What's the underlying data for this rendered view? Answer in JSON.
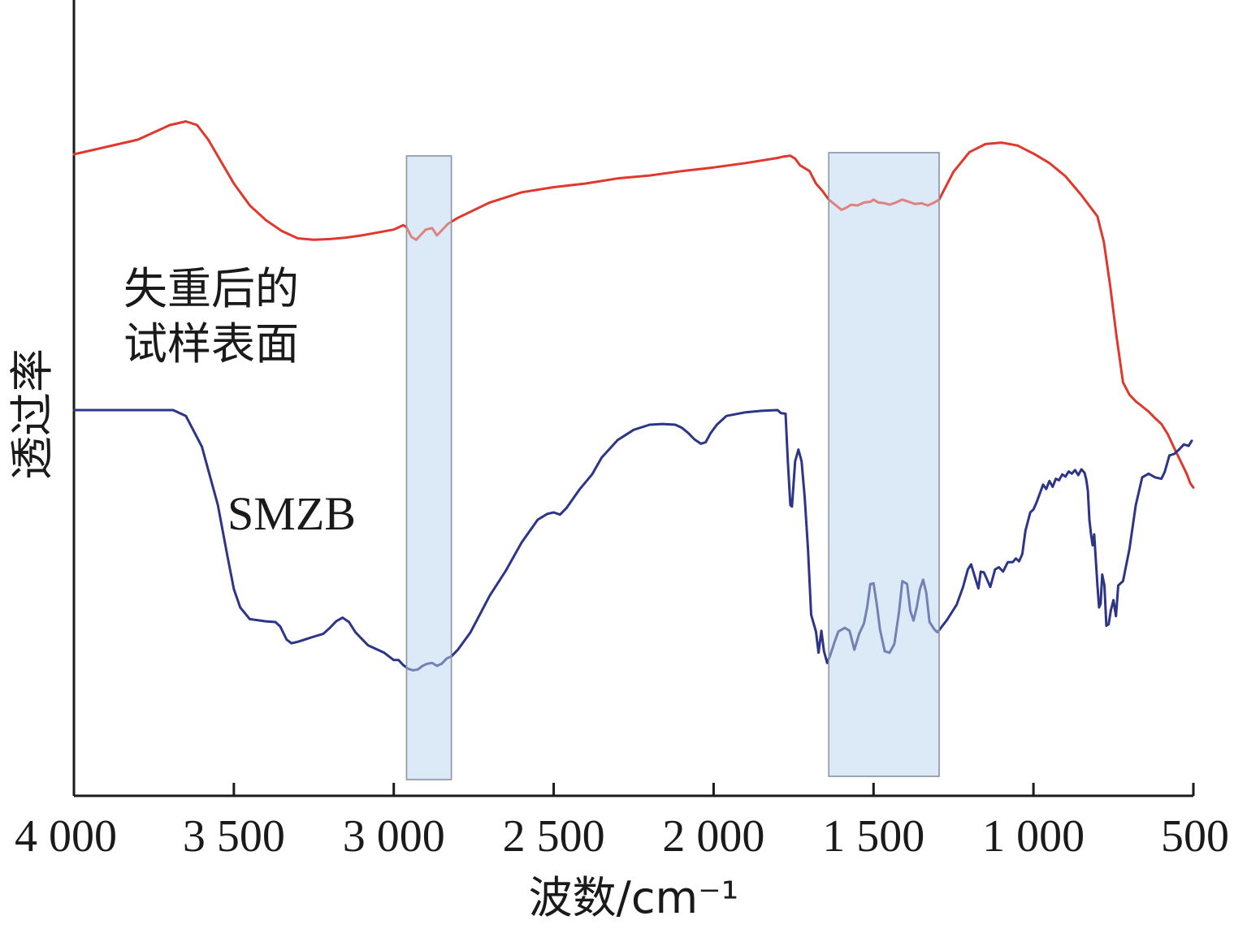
{
  "chart_data": {
    "type": "line",
    "xlabel": "波数/cm⁻¹",
    "ylabel": "透过率",
    "xlim": [
      4000,
      500
    ],
    "x_reversed": true,
    "xticks": [
      {
        "value": 4000,
        "label": "4 000"
      },
      {
        "value": 3500,
        "label": "3 500"
      },
      {
        "value": 3000,
        "label": "3 000"
      },
      {
        "value": 2500,
        "label": "2 500"
      },
      {
        "value": 2000,
        "label": "2 000"
      },
      {
        "value": 1500,
        "label": "1 500"
      },
      {
        "value": 1000,
        "label": "1 000"
      },
      {
        "value": 500,
        "label": "500"
      }
    ],
    "y_ticks_shown": false,
    "ylim": [
      0,
      100
    ],
    "highlight_bands": [
      {
        "from": 2960,
        "to": 2820,
        "color": "#dbeaf6"
      },
      {
        "from": 1640,
        "to": 1295,
        "color": "#dbeaf6"
      }
    ],
    "series": [
      {
        "name": "失重后的试样表面",
        "label_lines": [
          "失重后的",
          "试样表面"
        ],
        "color": "#e0382c",
        "points": [
          [
            4000,
            80
          ],
          [
            3900,
            81
          ],
          [
            3800,
            82
          ],
          [
            3750,
            83
          ],
          [
            3700,
            84
          ],
          [
            3650,
            84.5
          ],
          [
            3615,
            84
          ],
          [
            3580,
            82
          ],
          [
            3540,
            79
          ],
          [
            3500,
            76
          ],
          [
            3450,
            73
          ],
          [
            3400,
            71
          ],
          [
            3350,
            69.5
          ],
          [
            3300,
            68.5
          ],
          [
            3250,
            68.3
          ],
          [
            3200,
            68.4
          ],
          [
            3150,
            68.6
          ],
          [
            3100,
            68.9
          ],
          [
            3050,
            69.3
          ],
          [
            3000,
            69.7
          ],
          [
            2970,
            70.3
          ],
          [
            2960,
            70
          ],
          [
            2945,
            68.7
          ],
          [
            2930,
            68.3
          ],
          [
            2915,
            69
          ],
          [
            2900,
            69.7
          ],
          [
            2880,
            69.9
          ],
          [
            2865,
            68.9
          ],
          [
            2850,
            69.6
          ],
          [
            2830,
            70.5
          ],
          [
            2800,
            71.3
          ],
          [
            2700,
            73.4
          ],
          [
            2600,
            74.8
          ],
          [
            2500,
            75.5
          ],
          [
            2400,
            76
          ],
          [
            2300,
            76.7
          ],
          [
            2200,
            77.1
          ],
          [
            2100,
            77.7
          ],
          [
            2000,
            78.2
          ],
          [
            1900,
            78.8
          ],
          [
            1800,
            79.5
          ],
          [
            1780,
            79.7
          ],
          [
            1760,
            79.8
          ],
          [
            1745,
            79.4
          ],
          [
            1730,
            78.5
          ],
          [
            1700,
            77.7
          ],
          [
            1680,
            76
          ],
          [
            1660,
            75
          ],
          [
            1640,
            73.8
          ],
          [
            1620,
            73.1
          ],
          [
            1600,
            72.4
          ],
          [
            1585,
            72.7
          ],
          [
            1570,
            73.1
          ],
          [
            1550,
            73
          ],
          [
            1530,
            73.4
          ],
          [
            1510,
            73.5
          ],
          [
            1500,
            73.8
          ],
          [
            1485,
            73.4
          ],
          [
            1465,
            73.3
          ],
          [
            1450,
            73.1
          ],
          [
            1430,
            73.4
          ],
          [
            1410,
            73.8
          ],
          [
            1390,
            73.5
          ],
          [
            1370,
            73.2
          ],
          [
            1350,
            73.3
          ],
          [
            1330,
            73
          ],
          [
            1310,
            73.4
          ],
          [
            1295,
            73.8
          ],
          [
            1250,
            77.6
          ],
          [
            1200,
            80.3
          ],
          [
            1150,
            81.4
          ],
          [
            1100,
            81.6
          ],
          [
            1050,
            81.2
          ],
          [
            1000,
            80.1
          ],
          [
            950,
            78.8
          ],
          [
            900,
            77
          ],
          [
            850,
            74.4
          ],
          [
            800,
            71.5
          ],
          [
            780,
            68
          ],
          [
            760,
            62
          ],
          [
            740,
            55
          ],
          [
            720,
            48.8
          ],
          [
            700,
            47.1
          ],
          [
            680,
            46.2
          ],
          [
            660,
            45.5
          ],
          [
            640,
            44.8
          ],
          [
            620,
            43.9
          ],
          [
            600,
            43.1
          ],
          [
            580,
            41.7
          ],
          [
            560,
            39.8
          ],
          [
            540,
            38
          ],
          [
            520,
            36.2
          ],
          [
            510,
            35
          ],
          [
            500,
            34.4
          ]
        ]
      },
      {
        "name": "SMZB",
        "label_lines": [
          "SMZB"
        ],
        "color": "#2c3587",
        "points": [
          [
            4000,
            45
          ],
          [
            3900,
            45
          ],
          [
            3800,
            45
          ],
          [
            3700,
            45
          ],
          [
            3690,
            45
          ],
          [
            3650,
            44.2
          ],
          [
            3600,
            40
          ],
          [
            3550,
            32
          ],
          [
            3520,
            25
          ],
          [
            3500,
            20.5
          ],
          [
            3480,
            18
          ],
          [
            3450,
            16.4
          ],
          [
            3400,
            16.1
          ],
          [
            3370,
            16
          ],
          [
            3355,
            15.4
          ],
          [
            3335,
            13.6
          ],
          [
            3320,
            13.1
          ],
          [
            3300,
            13.3
          ],
          [
            3250,
            14
          ],
          [
            3220,
            14.4
          ],
          [
            3200,
            15.2
          ],
          [
            3180,
            16.1
          ],
          [
            3160,
            16.6
          ],
          [
            3140,
            16
          ],
          [
            3120,
            14.6
          ],
          [
            3080,
            12.8
          ],
          [
            3030,
            11.8
          ],
          [
            3000,
            10.8
          ],
          [
            2985,
            10.8
          ],
          [
            2970,
            10.1
          ],
          [
            2955,
            9.6
          ],
          [
            2940,
            9.4
          ],
          [
            2925,
            9.5
          ],
          [
            2910,
            10
          ],
          [
            2895,
            10.3
          ],
          [
            2880,
            10.4
          ],
          [
            2865,
            10
          ],
          [
            2850,
            10.3
          ],
          [
            2835,
            11
          ],
          [
            2820,
            11.3
          ],
          [
            2800,
            12.2
          ],
          [
            2760,
            14.6
          ],
          [
            2700,
            19.6
          ],
          [
            2650,
            23
          ],
          [
            2600,
            26.9
          ],
          [
            2550,
            30
          ],
          [
            2520,
            30.8
          ],
          [
            2500,
            31
          ],
          [
            2480,
            30.7
          ],
          [
            2460,
            31.6
          ],
          [
            2420,
            34.1
          ],
          [
            2380,
            36.2
          ],
          [
            2350,
            38.5
          ],
          [
            2300,
            40.9
          ],
          [
            2250,
            42.3
          ],
          [
            2200,
            43
          ],
          [
            2160,
            43.1
          ],
          [
            2120,
            43
          ],
          [
            2100,
            42.6
          ],
          [
            2080,
            41.9
          ],
          [
            2060,
            41
          ],
          [
            2040,
            40.4
          ],
          [
            2025,
            40.6
          ],
          [
            2010,
            41.8
          ],
          [
            1990,
            43
          ],
          [
            1960,
            44.2
          ],
          [
            1900,
            44.7
          ],
          [
            1850,
            44.9
          ],
          [
            1800,
            45
          ],
          [
            1790,
            44.6
          ],
          [
            1775,
            44.5
          ],
          [
            1768,
            38
          ],
          [
            1760,
            32
          ],
          [
            1755,
            31.8
          ],
          [
            1745,
            38
          ],
          [
            1735,
            39.6
          ],
          [
            1725,
            38
          ],
          [
            1715,
            33
          ],
          [
            1705,
            26
          ],
          [
            1695,
            17
          ],
          [
            1680,
            14.7
          ],
          [
            1672,
            11.8
          ],
          [
            1663,
            14.8
          ],
          [
            1655,
            12
          ],
          [
            1645,
            10.4
          ],
          [
            1635,
            11.5
          ],
          [
            1620,
            13.5
          ],
          [
            1610,
            14.7
          ],
          [
            1590,
            15.2
          ],
          [
            1575,
            14.8
          ],
          [
            1560,
            12.2
          ],
          [
            1545,
            14.4
          ],
          [
            1530,
            15.8
          ],
          [
            1520,
            18
          ],
          [
            1510,
            21.2
          ],
          [
            1500,
            21.3
          ],
          [
            1490,
            18.5
          ],
          [
            1480,
            15
          ],
          [
            1465,
            12
          ],
          [
            1450,
            11.8
          ],
          [
            1435,
            13
          ],
          [
            1420,
            17.5
          ],
          [
            1410,
            21.6
          ],
          [
            1395,
            21.2
          ],
          [
            1385,
            17.5
          ],
          [
            1375,
            16.2
          ],
          [
            1365,
            18
          ],
          [
            1355,
            20.5
          ],
          [
            1345,
            21.8
          ],
          [
            1335,
            20
          ],
          [
            1325,
            16
          ],
          [
            1310,
            15
          ],
          [
            1300,
            14.6
          ],
          [
            1270,
            16.3
          ],
          [
            1240,
            18.4
          ],
          [
            1220,
            20.8
          ],
          [
            1205,
            23.2
          ],
          [
            1195,
            23.9
          ],
          [
            1180,
            21.7
          ],
          [
            1172,
            20.6
          ],
          [
            1165,
            22.9
          ],
          [
            1155,
            22.8
          ],
          [
            1145,
            21.8
          ],
          [
            1135,
            20.8
          ],
          [
            1120,
            23.2
          ],
          [
            1108,
            23.5
          ],
          [
            1095,
            22.9
          ],
          [
            1080,
            24.2
          ],
          [
            1065,
            24.2
          ],
          [
            1055,
            24.7
          ],
          [
            1045,
            24.3
          ],
          [
            1035,
            25.3
          ],
          [
            1025,
            28.5
          ],
          [
            1010,
            31
          ],
          [
            1000,
            31.4
          ],
          [
            990,
            32.4
          ],
          [
            970,
            34.8
          ],
          [
            960,
            34.2
          ],
          [
            950,
            35.3
          ],
          [
            940,
            34.5
          ],
          [
            930,
            35.6
          ],
          [
            920,
            35.4
          ],
          [
            910,
            36.2
          ],
          [
            900,
            35.9
          ],
          [
            890,
            36.6
          ],
          [
            880,
            36.3
          ],
          [
            870,
            36.8
          ],
          [
            860,
            36.1
          ],
          [
            850,
            36.9
          ],
          [
            840,
            36.4
          ],
          [
            835,
            35.5
          ],
          [
            830,
            34
          ],
          [
            825,
            30
          ],
          [
            820,
            28
          ],
          [
            815,
            26.5
          ],
          [
            810,
            28
          ],
          [
            800,
            21
          ],
          [
            795,
            18
          ],
          [
            790,
            18.5
          ],
          [
            785,
            22.5
          ],
          [
            778,
            21
          ],
          [
            772,
            15.5
          ],
          [
            765,
            15.7
          ],
          [
            758,
            17.6
          ],
          [
            750,
            19
          ],
          [
            742,
            16.8
          ],
          [
            735,
            21
          ],
          [
            720,
            21.6
          ],
          [
            700,
            26
          ],
          [
            680,
            32
          ],
          [
            660,
            35.8
          ],
          [
            640,
            36.3
          ],
          [
            620,
            35.8
          ],
          [
            600,
            35.6
          ],
          [
            590,
            36.5
          ],
          [
            575,
            38.8
          ],
          [
            560,
            39
          ],
          [
            545,
            39.6
          ],
          [
            530,
            40.3
          ],
          [
            515,
            40.1
          ],
          [
            505,
            40.8
          ]
        ]
      }
    ]
  }
}
